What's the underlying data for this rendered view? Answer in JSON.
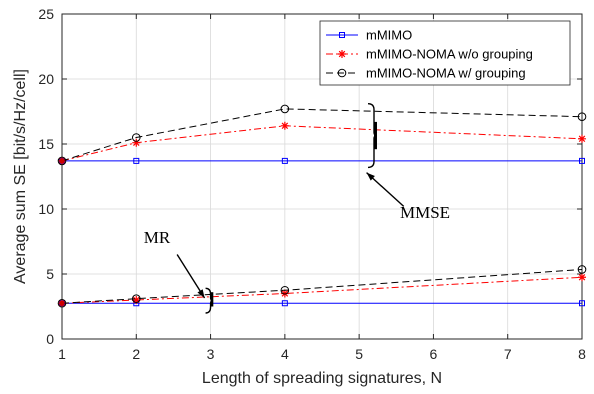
{
  "chart_data": {
    "type": "line",
    "xlabel": "Length of spreading signatures, N",
    "ylabel": "Average sum SE [bit/s/Hz/cell]",
    "xlim": [
      1,
      8
    ],
    "ylim": [
      0,
      25
    ],
    "xticks": [
      1,
      2,
      3,
      4,
      5,
      6,
      7,
      8
    ],
    "yticks": [
      0,
      5,
      10,
      15,
      20,
      25
    ],
    "grid": true,
    "legend_position": "top-right",
    "series": [
      {
        "name": "mMIMO",
        "color": "#0000ff",
        "dash": "solid",
        "marker": "square",
        "group": "MMSE",
        "x": [
          1,
          2,
          4,
          8
        ],
        "y": [
          13.7,
          13.7,
          13.7,
          13.7
        ]
      },
      {
        "name": "mMIMO-NOMA w/o grouping",
        "color": "#ff0000",
        "dash": "dashdot",
        "marker": "star",
        "group": "MMSE",
        "x": [
          1,
          2,
          4,
          8
        ],
        "y": [
          13.7,
          15.1,
          16.4,
          15.4
        ]
      },
      {
        "name": "mMIMO-NOMA w/  grouping",
        "color": "#000000",
        "dash": "dashed",
        "marker": "circle",
        "group": "MMSE",
        "x": [
          1,
          2,
          4,
          8
        ],
        "y": [
          13.7,
          15.5,
          17.7,
          17.1
        ]
      },
      {
        "name": "mMIMO",
        "color": "#0000ff",
        "dash": "solid",
        "marker": "square",
        "group": "MR",
        "x": [
          1,
          2,
          4,
          8
        ],
        "y": [
          2.75,
          2.75,
          2.75,
          2.75
        ]
      },
      {
        "name": "mMIMO-NOMA w/o grouping",
        "color": "#ff0000",
        "dash": "dashdot",
        "marker": "star",
        "group": "MR",
        "x": [
          1,
          2,
          4,
          8
        ],
        "y": [
          2.75,
          3.0,
          3.5,
          4.75
        ]
      },
      {
        "name": "mMIMO-NOMA w/  grouping",
        "color": "#000000",
        "dash": "dashed",
        "marker": "circle",
        "group": "MR",
        "x": [
          1,
          2,
          4,
          8
        ],
        "y": [
          2.75,
          3.1,
          3.75,
          5.35
        ]
      }
    ],
    "legend": [
      {
        "label": "mMIMO",
        "color": "#0000ff",
        "dash": "solid",
        "marker": "square"
      },
      {
        "label": "mMIMO-NOMA w/o grouping",
        "color": "#ff0000",
        "dash": "dashdot",
        "marker": "star"
      },
      {
        "label": "mMIMO-NOMA w/  grouping",
        "color": "#000000",
        "dash": "dashed",
        "marker": "circle"
      }
    ],
    "annotations": [
      {
        "text": "MMSE",
        "arrow_to": {
          "x": 5.1,
          "y": 12.8
        }
      },
      {
        "text": "MR",
        "arrow_to": {
          "x": 3.0,
          "y": 3.0
        }
      }
    ]
  }
}
